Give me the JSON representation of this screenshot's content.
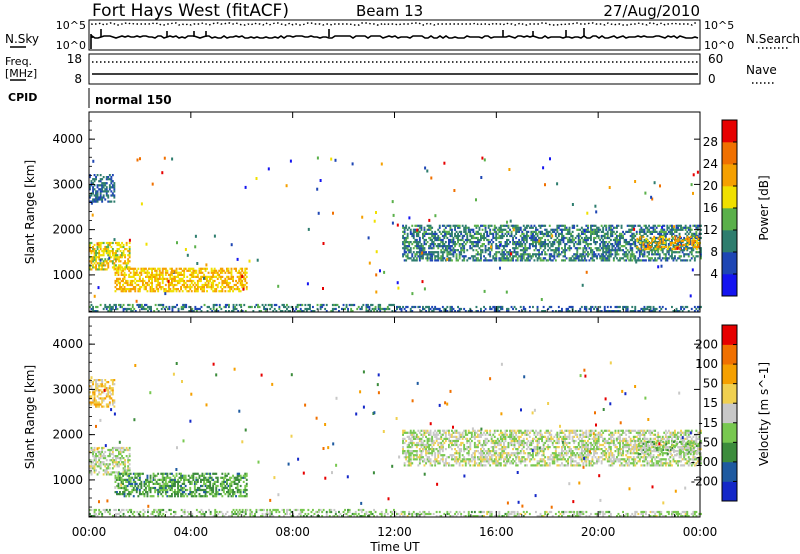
{
  "header": {
    "station": "Fort Hays West (fitACF)",
    "beam": "Beam 13",
    "date": "27/Aug/2010"
  },
  "sky_panel": {
    "left_label": "N.Sky",
    "right_label": "N.Search",
    "y_top_label": "10^5",
    "y_bottom_label": "10^0",
    "r_top_label": "10^5",
    "r_bottom_label": "10^0"
  },
  "freq_panel": {
    "left_label_1": "Freq.",
    "left_label_2": "[MHz]",
    "right_label": "Nave",
    "y_top_label": "18",
    "y_bottom_label": "8",
    "r_top_label": "60",
    "r_bottom_label": "0"
  },
  "cpid": {
    "label": "CPID",
    "program": "normal 150"
  },
  "chart_data": [
    {
      "type": "heatmap",
      "title": "",
      "xlabel": "Time UT",
      "ylabel": "Slant Range [km]",
      "x_ticks": [
        "00:00",
        "04:00",
        "08:00",
        "12:00",
        "16:00",
        "20:00",
        "00:00"
      ],
      "xlim": [
        0,
        24
      ],
      "y_ticks": [
        "1000",
        "2000",
        "3000",
        "4000"
      ],
      "ylim": [
        180,
        4600
      ],
      "colorbar": {
        "label": "Power [dB]",
        "ticks": [
          "4",
          "8",
          "12",
          "16",
          "20",
          "24",
          "28"
        ],
        "range": [
          0,
          32
        ],
        "colors": [
          "#1414f0",
          "#1e46b4",
          "#2e7d6e",
          "#5ab04a",
          "#f0e000",
          "#f5a000",
          "#f07000",
          "#e60000"
        ]
      },
      "echo_regions": [
        {
          "t0": 0.0,
          "t1": 1.6,
          "r0": 1100,
          "r1": 1700,
          "value": 18
        },
        {
          "t0": 0.0,
          "t1": 1.0,
          "r0": 2600,
          "r1": 3200,
          "value": 8
        },
        {
          "t0": 1.0,
          "t1": 6.2,
          "r0": 620,
          "r1": 1150,
          "value": 20
        },
        {
          "t0": 0.0,
          "t1": 12.0,
          "r0": 180,
          "r1": 320,
          "value": 10
        },
        {
          "t0": 12.0,
          "t1": 24.0,
          "r0": 180,
          "r1": 300,
          "value": 8
        },
        {
          "t0": 12.3,
          "t1": 24.0,
          "r0": 1300,
          "r1": 2100,
          "value": 10
        },
        {
          "t0": 21.5,
          "t1": 24.0,
          "r0": 1550,
          "r1": 1850,
          "value": 22
        }
      ]
    },
    {
      "type": "heatmap",
      "title": "",
      "xlabel": "Time UT",
      "ylabel": "Slant Range [km]",
      "x_ticks": [
        "00:00",
        "04:00",
        "08:00",
        "12:00",
        "16:00",
        "20:00",
        "00:00"
      ],
      "xlim": [
        0,
        24
      ],
      "y_ticks": [
        "1000",
        "2000",
        "3000",
        "4000"
      ],
      "ylim": [
        180,
        4600
      ],
      "colorbar": {
        "label": "Velocity [m s^-1]",
        "ticks": [
          "200",
          "100",
          "50",
          "15",
          "-15",
          "-50",
          "-100",
          "-200"
        ],
        "range": [
          -250,
          250
        ],
        "colors": [
          "#1428c8",
          "#1e5aa0",
          "#3c8c3c",
          "#78c850",
          "#c8c8c8",
          "#f0d050",
          "#f5a000",
          "#f07000",
          "#e60000"
        ]
      },
      "echo_regions": [
        {
          "t0": 0.0,
          "t1": 1.6,
          "r0": 1100,
          "r1": 1700,
          "value": -20
        },
        {
          "t0": 0.0,
          "t1": 1.0,
          "r0": 2600,
          "r1": 3200,
          "value": 60
        },
        {
          "t0": 1.0,
          "t1": 6.2,
          "r0": 620,
          "r1": 1150,
          "value": -90
        },
        {
          "t0": 0.0,
          "t1": 12.0,
          "r0": 180,
          "r1": 320,
          "value": -40
        },
        {
          "t0": 12.0,
          "t1": 24.0,
          "r0": 180,
          "r1": 300,
          "value": -30
        },
        {
          "t0": 12.3,
          "t1": 24.0,
          "r0": 1300,
          "r1": 2100,
          "value": -10
        },
        {
          "t0": 21.5,
          "t1": 24.0,
          "r0": 1550,
          "r1": 1850,
          "value": -40
        }
      ]
    }
  ]
}
